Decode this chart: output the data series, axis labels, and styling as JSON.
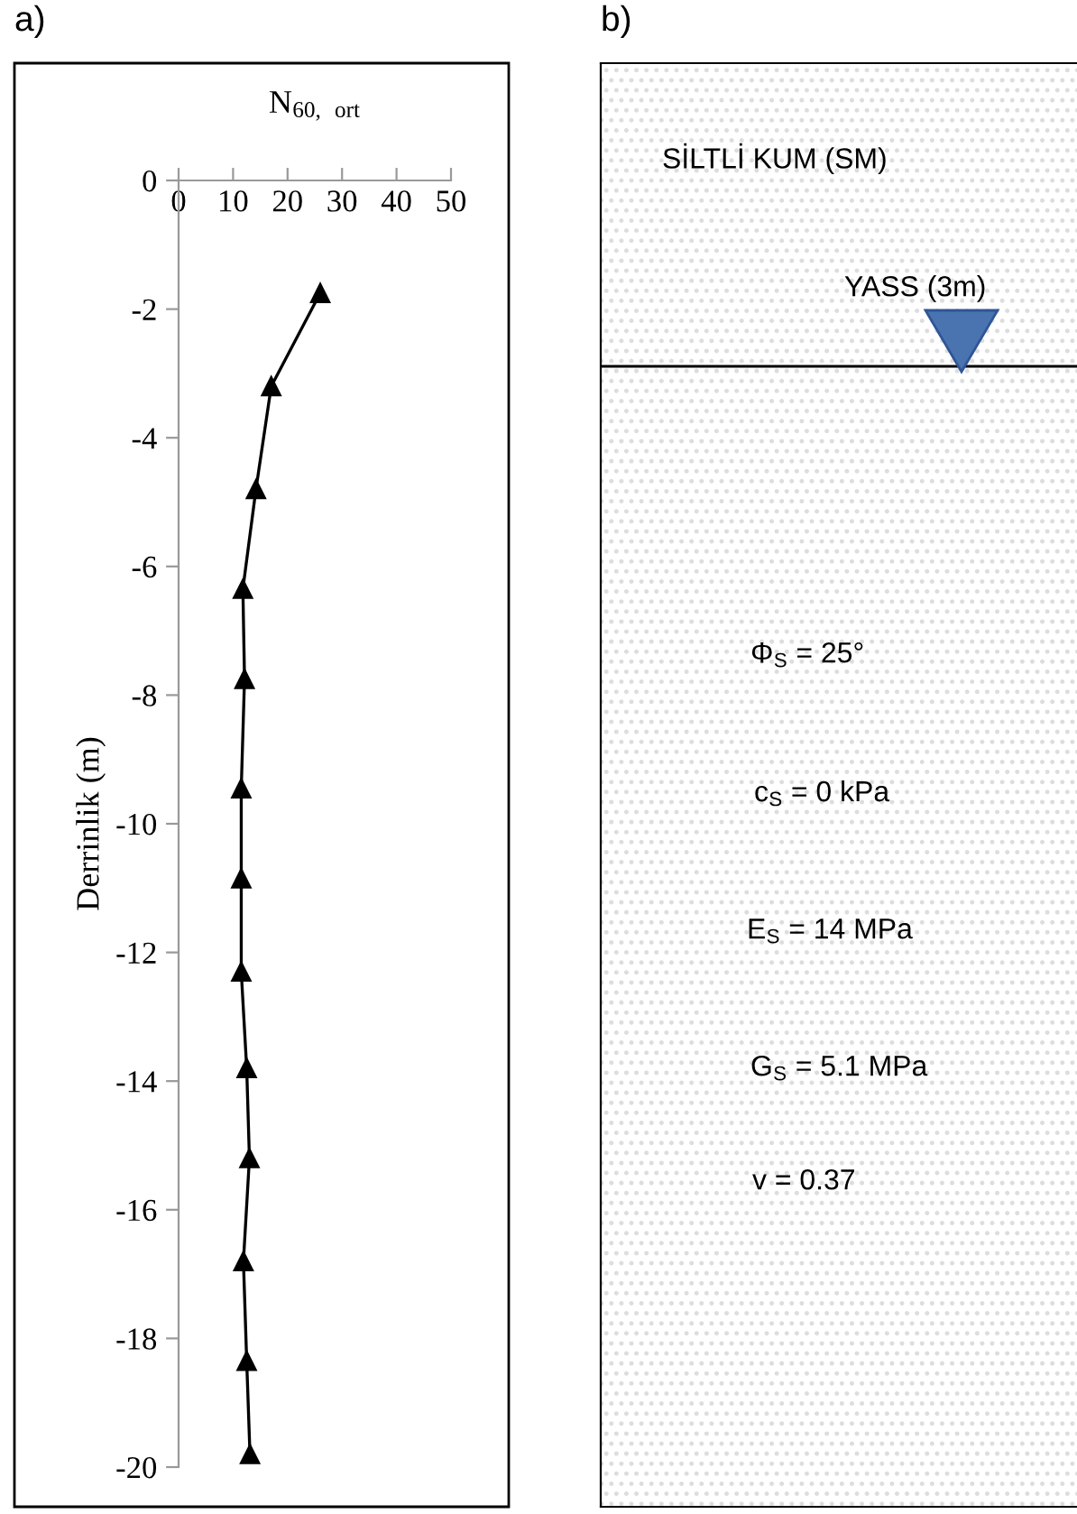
{
  "chart_data": [
    {
      "type": "line",
      "title": "a)",
      "xlabel": "N$_{60,}$ $_{ort}$",
      "ylabel": "Derrinlik (m)",
      "series": [
        {
          "color": "#000000",
          "marker": "triangle",
          "line_style": "solid",
          "x": [
            26,
            17,
            14.2,
            11.8,
            12.1,
            11.5,
            11.5,
            11.5,
            12.5,
            13,
            11.9,
            12.5,
            13.1
          ],
          "values": [
            -1.75,
            -3.2,
            -4.8,
            -6.35,
            -7.75,
            -9.45,
            -10.85,
            -12.3,
            -13.8,
            -15.2,
            -16.8,
            -18.35,
            -19.8
          ]
        }
      ],
      "xlim": [
        0,
        50
      ],
      "xticks": [
        0,
        10,
        20,
        30,
        40,
        50
      ],
      "ylim": [
        -20,
        0
      ],
      "yticks": [
        0,
        -2,
        -4,
        -6,
        -8,
        -10,
        -12,
        -14,
        -16,
        -18,
        -20
      ],
      "grid": false,
      "legend": false
    },
    {
      "type": "other",
      "title": "b)",
      "annotations": [
        "SİLTLİ KUM (SM)",
        "YASS (3m)",
        "Φ$_{S}$ = 25°",
        "c$_{S}$ = 0 kPa",
        "E$_{S}$ = 14 MPa",
        "G$_{S}$ = 5.1 MPa",
        "v = 0.37"
      ]
    }
  ]
}
